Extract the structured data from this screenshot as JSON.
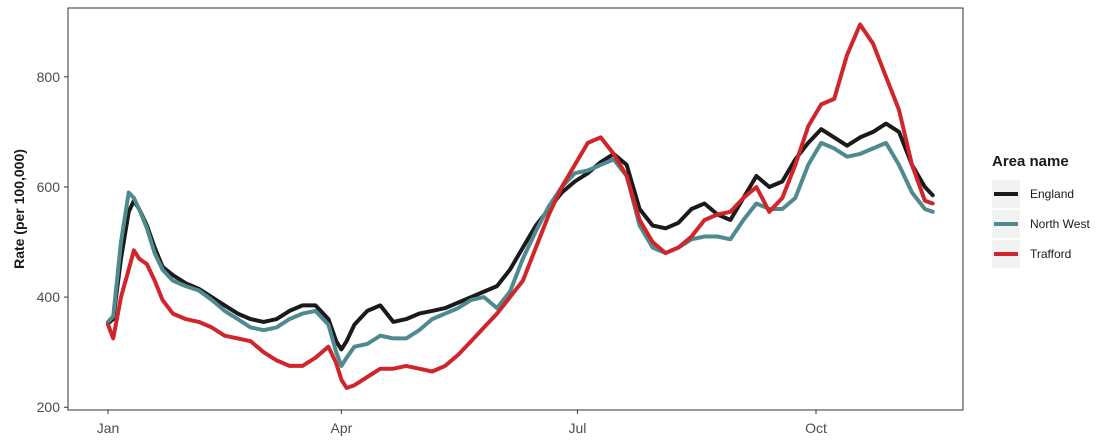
{
  "chart_data": {
    "type": "line",
    "title": "",
    "xlabel": "",
    "ylabel": "Rate (per 100,000)",
    "ylim": [
      195,
      925
    ],
    "xlim": [
      0,
      320
    ],
    "yticks": [
      200,
      400,
      600,
      800
    ],
    "xticks": [
      {
        "label": "Jan",
        "x": 0
      },
      {
        "label": "Apr",
        "x": 90
      },
      {
        "label": "Jul",
        "x": 181
      },
      {
        "label": "Oct",
        "x": 273
      }
    ],
    "grid": false,
    "legend": {
      "title": "Area name",
      "position": "right"
    },
    "series": [
      {
        "name": "England",
        "color": "#1a1a1a",
        "x": [
          0,
          2,
          5,
          8,
          10,
          12,
          15,
          18,
          21,
          25,
          30,
          35,
          40,
          45,
          50,
          55,
          60,
          65,
          70,
          75,
          80,
          85,
          88,
          90,
          92,
          95,
          100,
          105,
          110,
          115,
          120,
          125,
          130,
          135,
          140,
          145,
          150,
          155,
          160,
          165,
          170,
          175,
          180,
          185,
          190,
          195,
          200,
          205,
          210,
          215,
          220,
          225,
          230,
          235,
          240,
          245,
          250,
          255,
          260,
          265,
          270,
          275,
          280,
          285,
          290,
          295,
          300,
          305,
          310,
          315,
          318
        ],
        "y": [
          352,
          360,
          470,
          555,
          575,
          560,
          530,
          490,
          455,
          440,
          425,
          415,
          400,
          385,
          370,
          360,
          355,
          360,
          375,
          385,
          385,
          360,
          320,
          305,
          320,
          350,
          375,
          385,
          355,
          360,
          370,
          375,
          380,
          390,
          400,
          410,
          420,
          450,
          490,
          530,
          560,
          590,
          610,
          625,
          645,
          660,
          640,
          560,
          530,
          525,
          535,
          560,
          570,
          550,
          540,
          580,
          620,
          600,
          610,
          650,
          680,
          705,
          690,
          675,
          690,
          700,
          715,
          700,
          640,
          600,
          585
        ]
      },
      {
        "name": "North West",
        "color": "#4e8a8e",
        "x": [
          0,
          2,
          5,
          8,
          10,
          12,
          15,
          18,
          21,
          25,
          30,
          35,
          40,
          45,
          50,
          55,
          60,
          65,
          70,
          75,
          80,
          85,
          88,
          90,
          92,
          95,
          100,
          105,
          110,
          115,
          120,
          125,
          130,
          135,
          140,
          145,
          150,
          155,
          160,
          165,
          170,
          175,
          180,
          185,
          190,
          195,
          200,
          205,
          210,
          215,
          220,
          225,
          230,
          235,
          240,
          245,
          250,
          255,
          260,
          265,
          270,
          275,
          280,
          285,
          290,
          295,
          300,
          305,
          310,
          315,
          318
        ],
        "y": [
          355,
          365,
          500,
          590,
          580,
          560,
          525,
          480,
          450,
          430,
          420,
          412,
          395,
          375,
          360,
          345,
          340,
          345,
          360,
          370,
          375,
          350,
          300,
          275,
          290,
          310,
          315,
          330,
          325,
          325,
          340,
          360,
          370,
          380,
          395,
          400,
          380,
          410,
          470,
          520,
          565,
          600,
          625,
          630,
          640,
          650,
          620,
          530,
          490,
          480,
          490,
          505,
          510,
          510,
          505,
          540,
          570,
          560,
          560,
          580,
          640,
          680,
          670,
          655,
          660,
          670,
          680,
          640,
          590,
          560,
          555
        ]
      },
      {
        "name": "Trafford",
        "color": "#d0262b",
        "x": [
          0,
          2,
          5,
          8,
          10,
          12,
          15,
          18,
          21,
          25,
          30,
          35,
          40,
          45,
          50,
          55,
          60,
          65,
          70,
          75,
          80,
          85,
          88,
          90,
          92,
          95,
          100,
          105,
          110,
          115,
          120,
          125,
          130,
          135,
          140,
          145,
          150,
          155,
          160,
          165,
          170,
          175,
          180,
          185,
          190,
          195,
          200,
          205,
          210,
          215,
          220,
          225,
          230,
          235,
          240,
          245,
          250,
          255,
          260,
          265,
          270,
          275,
          280,
          285,
          290,
          295,
          300,
          305,
          310,
          315,
          318
        ],
        "y": [
          350,
          325,
          400,
          450,
          485,
          470,
          460,
          430,
          395,
          370,
          360,
          355,
          345,
          330,
          325,
          320,
          300,
          285,
          275,
          275,
          290,
          310,
          280,
          250,
          235,
          240,
          255,
          270,
          270,
          275,
          270,
          265,
          275,
          295,
          320,
          345,
          370,
          400,
          430,
          490,
          550,
          600,
          640,
          680,
          690,
          660,
          620,
          540,
          500,
          480,
          490,
          510,
          540,
          550,
          555,
          580,
          600,
          555,
          580,
          640,
          710,
          750,
          760,
          840,
          895,
          860,
          800,
          740,
          640,
          575,
          570
        ]
      }
    ]
  }
}
